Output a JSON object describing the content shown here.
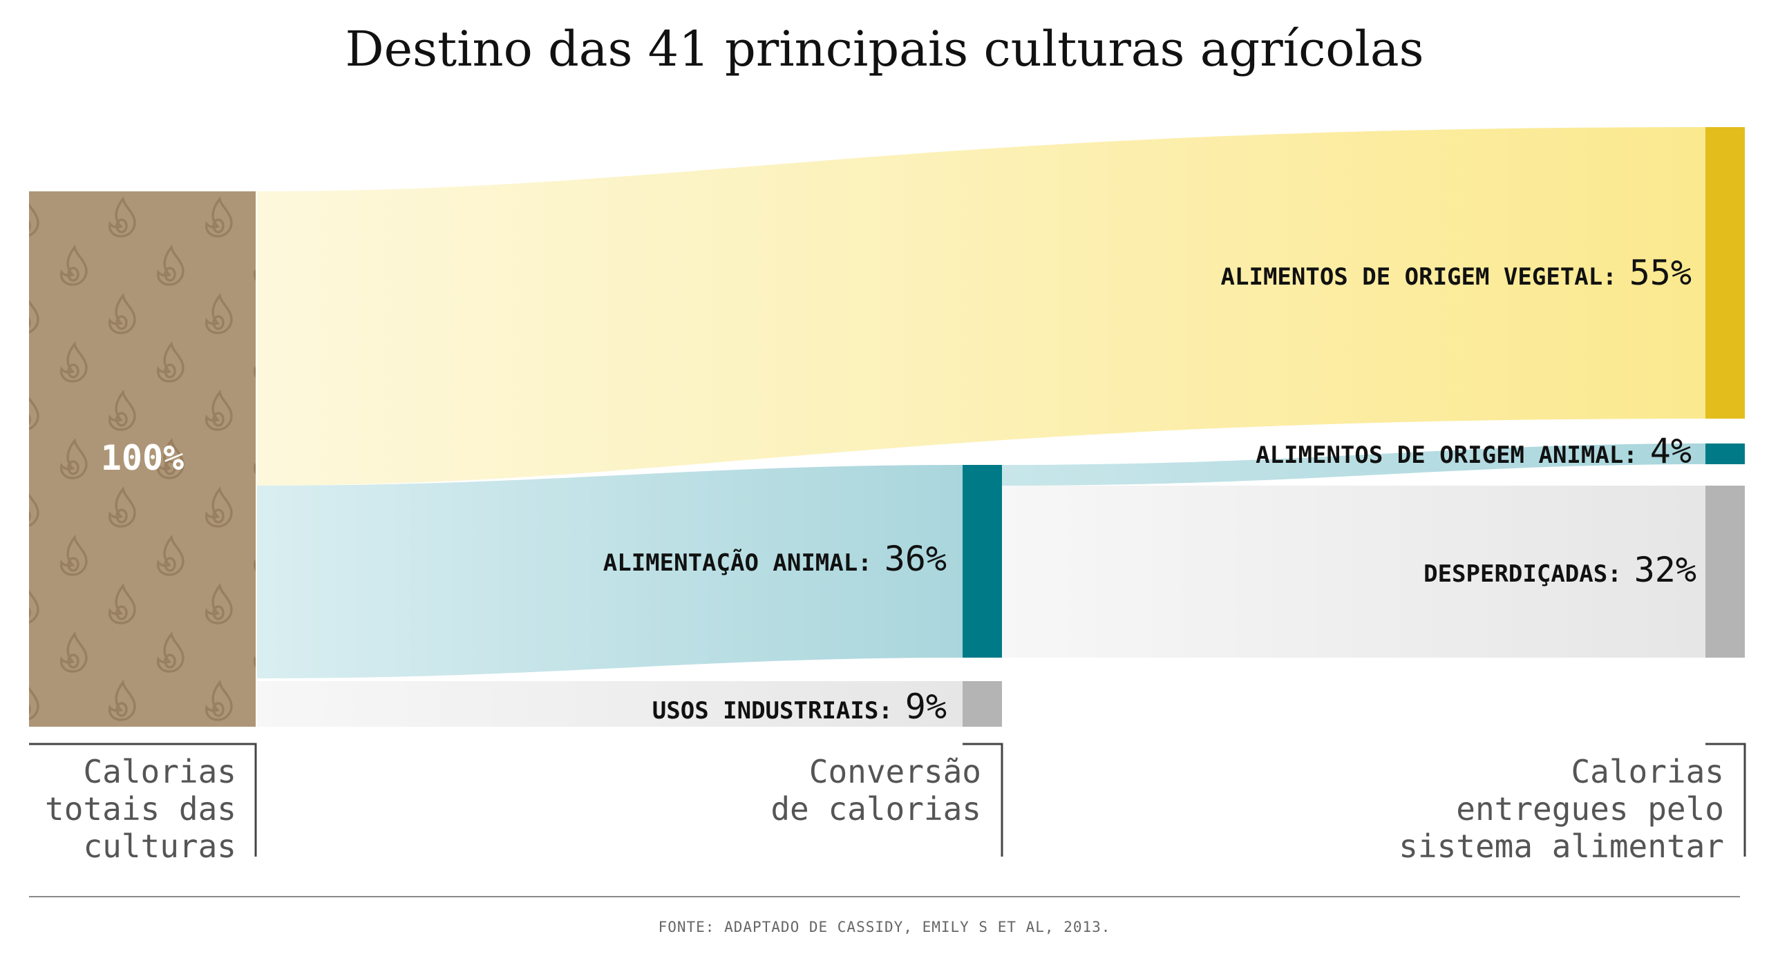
{
  "title": "Destino das 41 principais culturas agrícolas",
  "chart_data": {
    "type": "sankey",
    "stages": [
      "Calorias totais das culturas",
      "Conversão de calorias",
      "Calorias entregues pelo sistema alimentar"
    ],
    "source_node": {
      "label": "100%",
      "value": 100
    },
    "nodes": [
      {
        "id": "vegetal",
        "label": "ALIMENTOS DE ORIGEM VEGETAL:",
        "value_label": "55%",
        "value": 55,
        "color": "#e2bd1c"
      },
      {
        "id": "animal_feed",
        "label": "ALIMENTAÇÃO ANIMAL:",
        "value_label": "36%",
        "value": 36,
        "color": "#007a87"
      },
      {
        "id": "industrial",
        "label": "USOS INDUSTRIAIS:",
        "value_label": "9%",
        "value": 9,
        "color": "#b4b4b4"
      },
      {
        "id": "animal_food",
        "label": "ALIMENTOS DE ORIGEM ANIMAL:",
        "value_label": "4%",
        "value": 4,
        "color": "#007a87"
      },
      {
        "id": "waste",
        "label": "DESPERDIÇADAS:",
        "value_label": "32%",
        "value": 32,
        "color": "#b4b4b4"
      }
    ],
    "links": [
      {
        "from": "total",
        "to": "vegetal",
        "value": 55
      },
      {
        "from": "total",
        "to": "animal_feed",
        "value": 36
      },
      {
        "from": "total",
        "to": "industrial",
        "value": 9
      },
      {
        "from": "animal_feed",
        "to": "animal_food",
        "value": 4
      },
      {
        "from": "animal_feed",
        "to": "waste",
        "value": 32
      }
    ]
  },
  "stage_labels": {
    "left": [
      "Calorias",
      "totais das",
      "culturas"
    ],
    "middle": [
      "Conversão",
      "de calorias"
    ],
    "right": [
      "Calorias",
      "entregues pelo",
      "sistema alimentar"
    ]
  },
  "source": "FONTE: ADAPTADO DE CASSIDY, EMILY S ET AL, 2013.",
  "colors": {
    "source_node": "#ad9677",
    "source_icon": "#907656",
    "vegetal_band_start": "#fdf8dc",
    "vegetal_band_end": "#fbe98f",
    "teal_band_start": "#d9eef1",
    "teal_band_end": "#a9d6dc",
    "grey_band_start": "#f7f7f7",
    "grey_band_end": "#e6e6e6"
  }
}
